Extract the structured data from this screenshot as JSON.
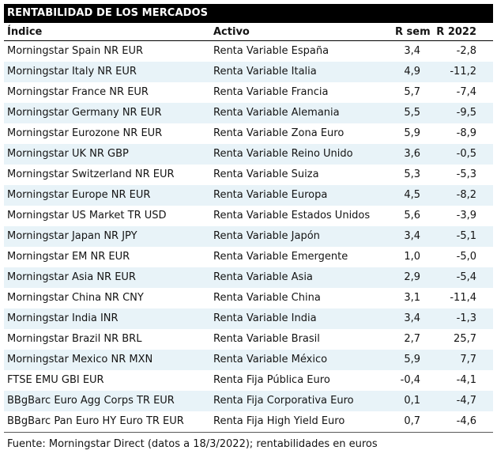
{
  "title": "RENTABILIDAD DE LOS MERCADOS",
  "columns": {
    "indice": "Índice",
    "activo": "Activo",
    "r_sem": "R sem",
    "r_2022": "R 2022"
  },
  "rows": [
    {
      "indice": "Morningstar Spain NR EUR",
      "activo": "Renta Variable España",
      "r_sem": "3,4",
      "r_2022": "-2,8"
    },
    {
      "indice": "Morningstar Italy NR EUR",
      "activo": "Renta Variable Italia",
      "r_sem": "4,9",
      "r_2022": "-11,2"
    },
    {
      "indice": "Morningstar France NR EUR",
      "activo": "Renta Variable Francia",
      "r_sem": "5,7",
      "r_2022": "-7,4"
    },
    {
      "indice": "Morningstar Germany NR EUR",
      "activo": "Renta Variable Alemania",
      "r_sem": "5,5",
      "r_2022": "-9,5"
    },
    {
      "indice": "Morningstar Eurozone NR EUR",
      "activo": "Renta Variable Zona Euro",
      "r_sem": "5,9",
      "r_2022": "-8,9"
    },
    {
      "indice": "Morningstar UK NR GBP",
      "activo": "Renta Variable Reino Unido",
      "r_sem": "3,6",
      "r_2022": "-0,5"
    },
    {
      "indice": "Morningstar Switzerland NR EUR",
      "activo": "Renta Variable Suiza",
      "r_sem": "5,3",
      "r_2022": "-5,3"
    },
    {
      "indice": "Morningstar Europe NR EUR",
      "activo": "Renta Variable Europa",
      "r_sem": "4,5",
      "r_2022": "-8,2"
    },
    {
      "indice": "Morningstar US Market TR USD",
      "activo": "Renta Variable Estados Unidos",
      "r_sem": "5,6",
      "r_2022": "-3,9"
    },
    {
      "indice": "Morningstar Japan NR JPY",
      "activo": "Renta Variable Japón",
      "r_sem": "3,4",
      "r_2022": "-5,1"
    },
    {
      "indice": "Morningstar EM NR EUR",
      "activo": "Renta Variable Emergente",
      "r_sem": "1,0",
      "r_2022": "-5,0"
    },
    {
      "indice": "Morningstar Asia NR EUR",
      "activo": "Renta Variable Asia",
      "r_sem": "2,9",
      "r_2022": "-5,4"
    },
    {
      "indice": "Morningstar China NR CNY",
      "activo": "Renta Variable China",
      "r_sem": "3,1",
      "r_2022": "-11,4"
    },
    {
      "indice": "Morningstar India INR",
      "activo": "Renta Variable India",
      "r_sem": "3,4",
      "r_2022": "-1,3"
    },
    {
      "indice": "Morningstar Brazil NR BRL",
      "activo": "Renta Variable Brasil",
      "r_sem": "2,7",
      "r_2022": "25,7"
    },
    {
      "indice": "Morningstar Mexico NR MXN",
      "activo": "Renta Variable México",
      "r_sem": "5,9",
      "r_2022": "7,7"
    },
    {
      "indice": "FTSE EMU GBI EUR",
      "activo": "Renta Fija Pública Euro",
      "r_sem": "-0,4",
      "r_2022": "-4,1"
    },
    {
      "indice": "BBgBarc Euro Agg Corps TR EUR",
      "activo": "Renta Fija Corporativa Euro",
      "r_sem": "0,1",
      "r_2022": "-4,7"
    },
    {
      "indice": "BBgBarc Pan Euro HY Euro TR EUR",
      "activo": "Renta Fija High Yield Euro",
      "r_sem": "0,7",
      "r_2022": "-4,6"
    }
  ],
  "footer": "Fuente: Morningstar Direct (datos a 18/3/2022); rentabilidades en euros",
  "colors": {
    "title_bg": "#000000",
    "title_text": "#ffffff",
    "row_stripe": "#e8f3f8",
    "text": "#141414",
    "footer_rule": "#595959"
  }
}
